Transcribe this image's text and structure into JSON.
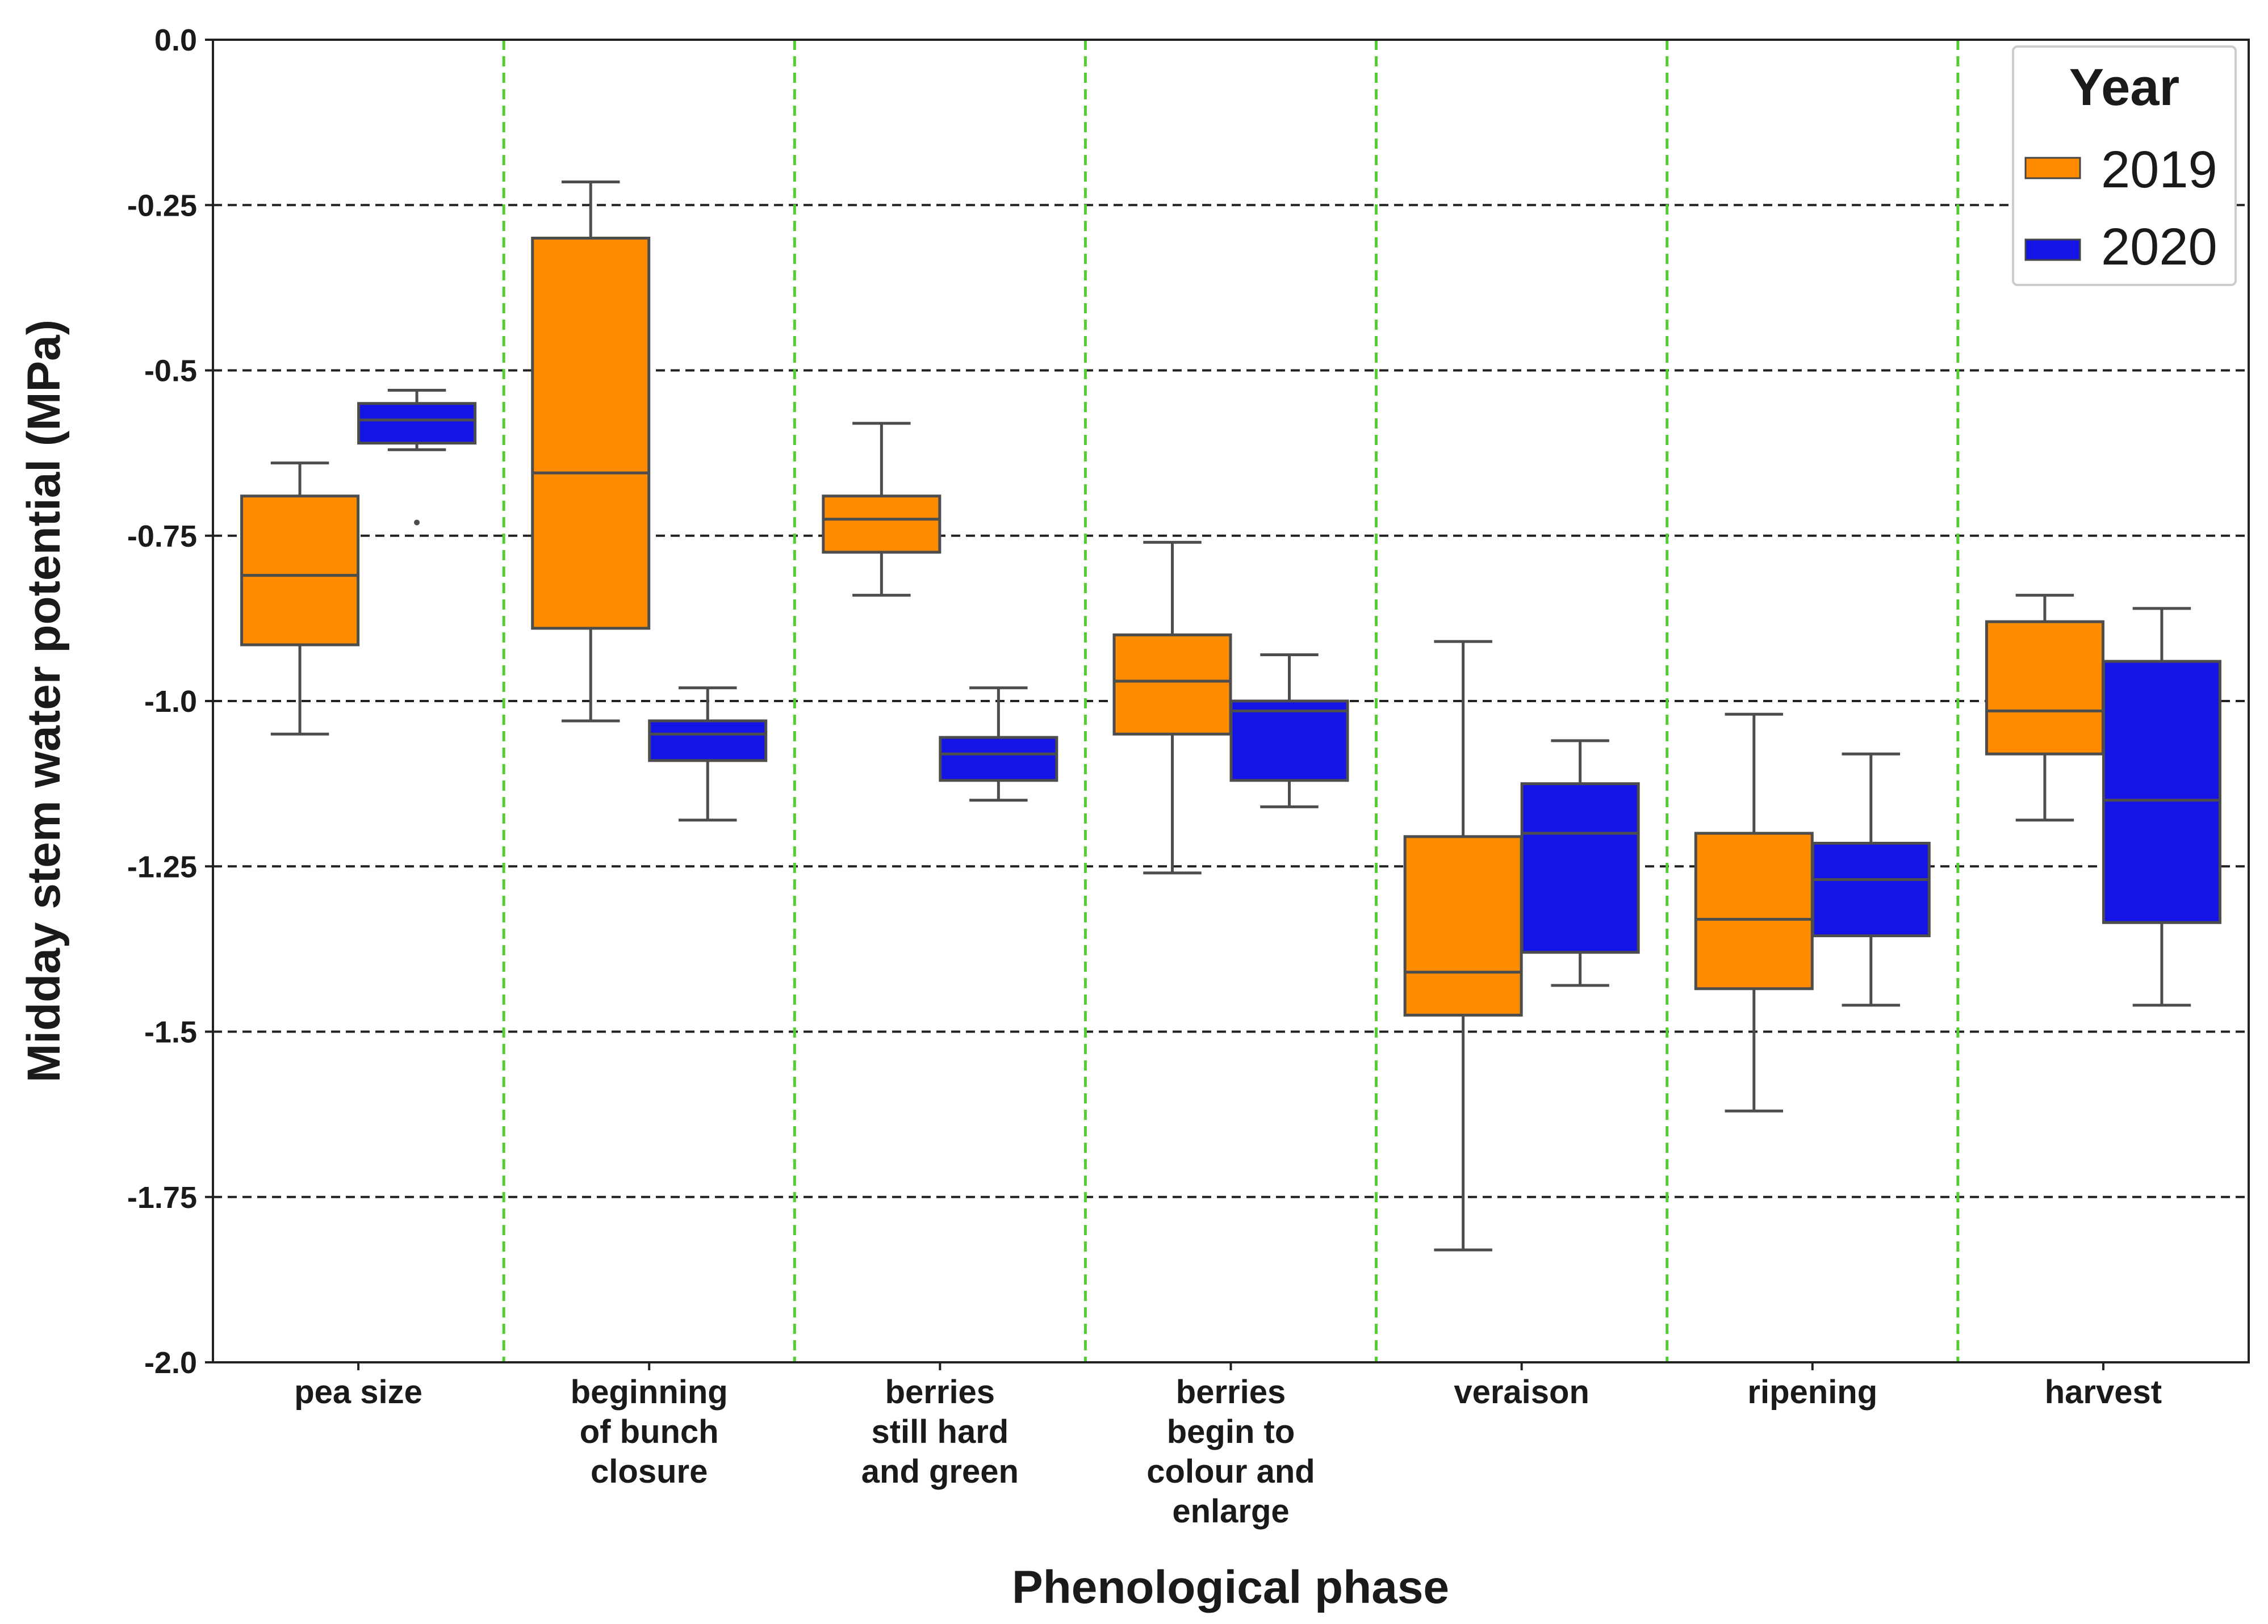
{
  "chart_data": {
    "type": "boxplot",
    "xlabel": "Phenological phase",
    "ylabel": "Midday stem water potential (MPa)",
    "ylim": [
      -2.0,
      0.0
    ],
    "yticks": [
      0.0,
      -0.25,
      -0.5,
      -0.75,
      -1.0,
      -1.25,
      -1.5,
      -1.75,
      -2.0
    ],
    "ytick_labels": [
      "0.0",
      "-0.25",
      "-0.5",
      "-0.75",
      "-1.0",
      "-1.25",
      "-1.5",
      "-1.75",
      "-2.0"
    ],
    "grid": {
      "horizontal": "dashed black",
      "vertical_separators": "dashed green"
    },
    "legend": {
      "title": "Year",
      "placement": "top-right"
    },
    "categories": [
      [
        "pea size"
      ],
      [
        "beginning",
        "of bunch",
        "closure"
      ],
      [
        "berries",
        "still hard",
        "and green"
      ],
      [
        "berries",
        "begin to",
        "colour and",
        "enlarge"
      ],
      [
        "veraison"
      ],
      [
        "ripening"
      ],
      [
        "harvest"
      ]
    ],
    "series": [
      {
        "name": "2019",
        "color": "#ff8c00",
        "boxes": [
          {
            "whislo": -1.05,
            "q1": -0.915,
            "med": -0.81,
            "q3": -0.69,
            "whishi": -0.64,
            "outliers": []
          },
          {
            "whislo": -1.03,
            "q1": -0.89,
            "med": -0.655,
            "q3": -0.3,
            "whishi": -0.215,
            "outliers": []
          },
          {
            "whislo": -0.84,
            "q1": -0.775,
            "med": -0.725,
            "q3": -0.69,
            "whishi": -0.58,
            "outliers": []
          },
          {
            "whislo": -1.26,
            "q1": -1.05,
            "med": -0.97,
            "q3": -0.9,
            "whishi": -0.76,
            "outliers": []
          },
          {
            "whislo": -1.83,
            "q1": -1.475,
            "med": -1.41,
            "q3": -1.205,
            "whishi": -0.91,
            "outliers": []
          },
          {
            "whislo": -1.62,
            "q1": -1.435,
            "med": -1.33,
            "q3": -1.2,
            "whishi": -1.02,
            "outliers": []
          },
          {
            "whislo": -1.18,
            "q1": -1.08,
            "med": -1.015,
            "q3": -0.88,
            "whishi": -0.84,
            "outliers": []
          }
        ]
      },
      {
        "name": "2020",
        "color": "#1414e6",
        "boxes": [
          {
            "whislo": -0.62,
            "q1": -0.61,
            "med": -0.575,
            "q3": -0.55,
            "whishi": -0.53,
            "outliers": [
              -0.73
            ]
          },
          {
            "whislo": -1.18,
            "q1": -1.09,
            "med": -1.05,
            "q3": -1.03,
            "whishi": -0.98,
            "outliers": []
          },
          {
            "whislo": -1.15,
            "q1": -1.12,
            "med": -1.08,
            "q3": -1.055,
            "whishi": -0.98,
            "outliers": []
          },
          {
            "whislo": -1.16,
            "q1": -1.12,
            "med": -1.015,
            "q3": -1.0,
            "whishi": -0.93,
            "outliers": []
          },
          {
            "whislo": -1.43,
            "q1": -1.38,
            "med": -1.2,
            "q3": -1.125,
            "whishi": -1.06,
            "outliers": []
          },
          {
            "whislo": -1.46,
            "q1": -1.355,
            "med": -1.27,
            "q3": -1.215,
            "whishi": -1.08,
            "outliers": []
          },
          {
            "whislo": -1.46,
            "q1": -1.335,
            "med": -1.15,
            "q3": -0.94,
            "whishi": -0.86,
            "outliers": []
          }
        ]
      }
    ]
  }
}
